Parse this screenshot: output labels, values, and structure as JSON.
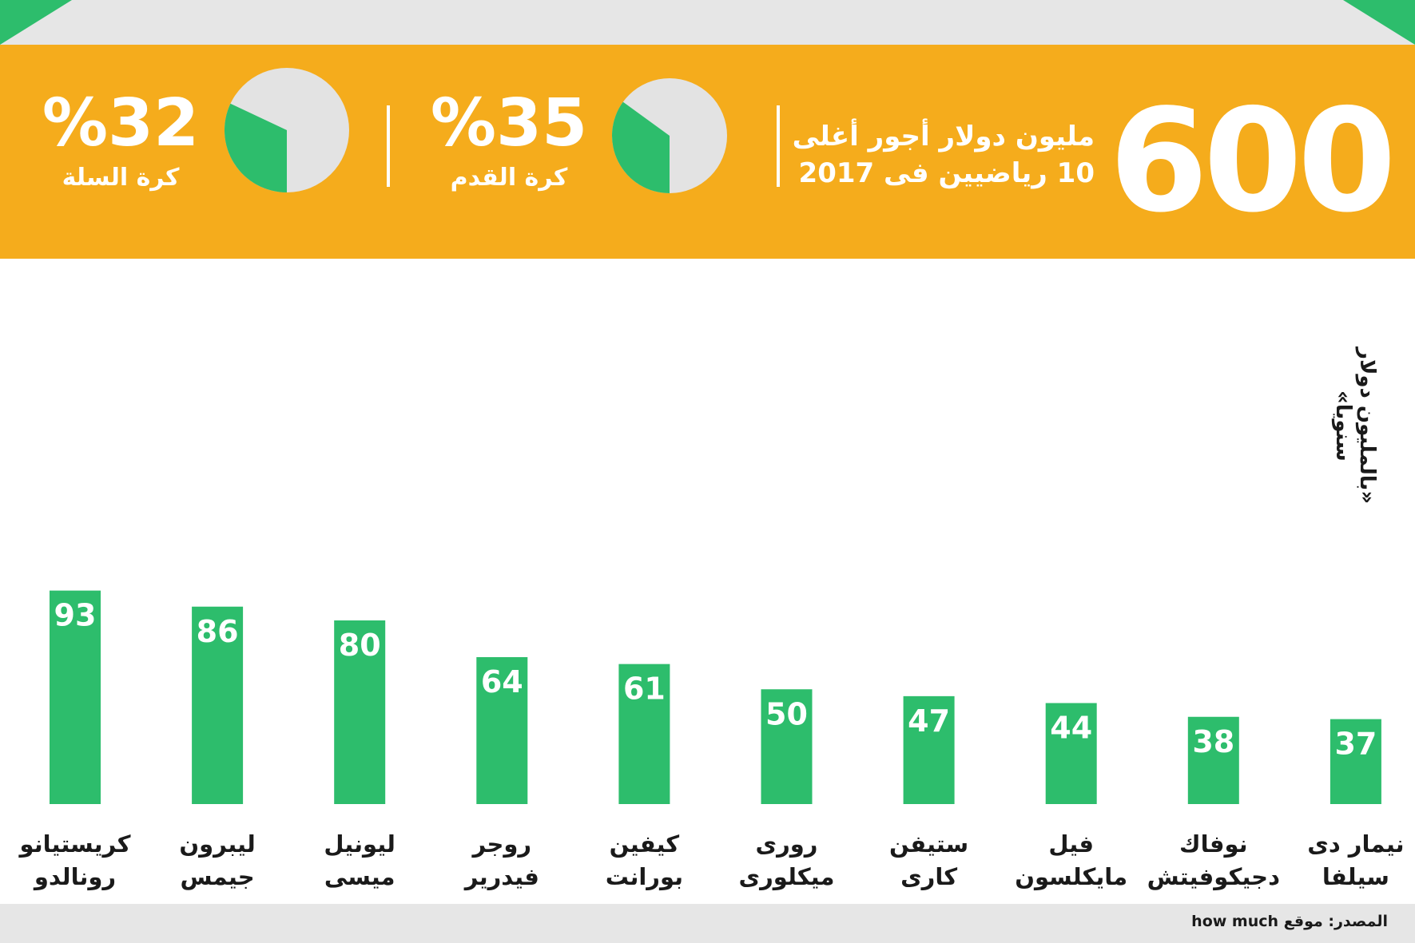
{
  "headline": {
    "value": "600",
    "text_line1": "مليون دولار أجور أغلى",
    "text_line2": "10 رياضيين فى 2017"
  },
  "stats": [
    {
      "percent": "%35",
      "label": "كرة القدم",
      "share": 0.35,
      "slice_color": "#2dbd6c",
      "rest_color": "#e3e3e3"
    },
    {
      "percent": "%32",
      "label": "كرة السلة",
      "share": 0.32,
      "slice_color": "#2dbd6c",
      "rest_color": "#e3e3e3"
    }
  ],
  "unit_label": "«بالمليون دولار سنويا»",
  "source": "المصدر: موقع how much",
  "colors": {
    "banner": "#f5ac1c",
    "bar": "#2dbd6c",
    "accent": "#2dbd6c",
    "band": "#e6e6e6"
  },
  "chart_data": {
    "type": "bar",
    "ylabel": "«بالمليون دولار سنويا»",
    "ylim": [
      0,
      100
    ],
    "grid": false,
    "legend": "none",
    "categories": [
      [
        "كريستيانو",
        "رونالدو"
      ],
      [
        "ليبرون",
        "جيمس"
      ],
      [
        "ليونيل",
        "ميسى"
      ],
      [
        "روجر",
        "فيدرير"
      ],
      [
        "كيفين",
        "بورانت"
      ],
      [
        "رورى",
        "ميكلورى"
      ],
      [
        "ستيفن",
        "كارى"
      ],
      [
        "فيل",
        "مايكلسون"
      ],
      [
        "نوفاك",
        "دجيكوفيتش"
      ],
      [
        "نيمار دى",
        "سيلفا"
      ]
    ],
    "values": [
      93,
      86,
      80,
      64,
      61,
      50,
      47,
      44,
      38,
      37
    ]
  }
}
